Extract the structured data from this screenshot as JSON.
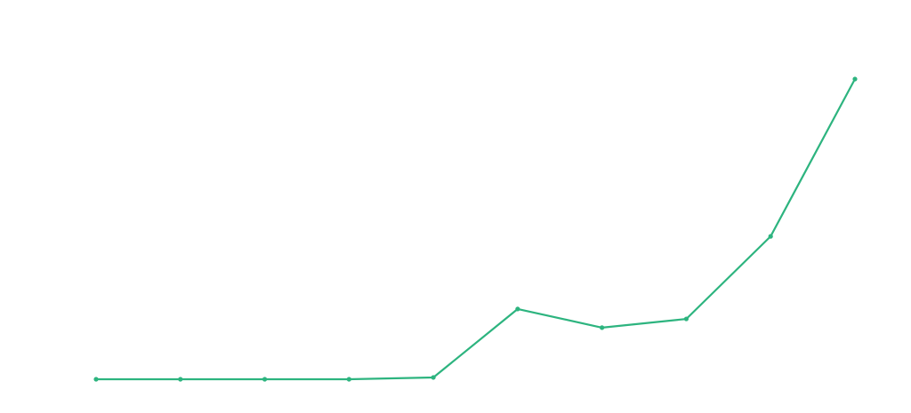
{
  "chart_data": {
    "type": "line",
    "categories": [
      null,
      null,
      null,
      null,
      null,
      null,
      null,
      null,
      null,
      null
    ],
    "values": [
      0,
      0,
      0,
      0,
      0.6,
      23.4,
      17.2,
      20.1,
      47.6,
      100
    ],
    "color": "#2db47f",
    "ylim": [
      0,
      100
    ]
  }
}
